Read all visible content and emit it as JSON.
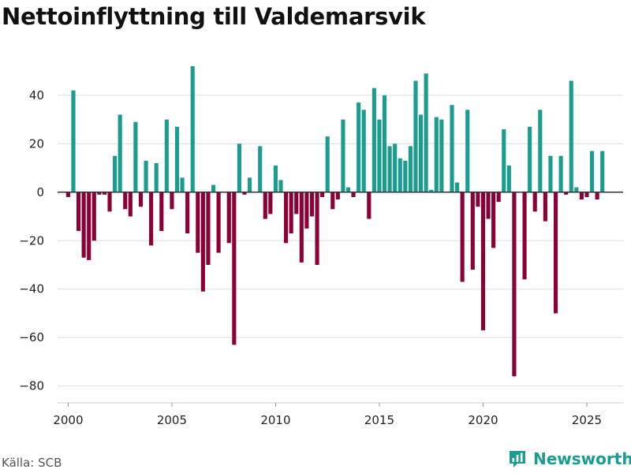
{
  "title": "Nettoinflyttning till Valdemarsvik",
  "source": "Källa: SCB",
  "brand": {
    "name": "Newsworthy",
    "color": "#1a9c8e"
  },
  "colors": {
    "positive": "#1a9c8e",
    "negative": "#8b0036",
    "grid": "#dddddd",
    "zero": "#333333"
  },
  "chart_data": {
    "type": "bar",
    "title": "Nettoinflyttning till Valdemarsvik",
    "xlabel": "",
    "ylabel": "",
    "frequency": "quarterly",
    "first_period": 2000.0,
    "xlim": [
      1999.3,
      2026.75
    ],
    "ylim": [
      -85,
      52
    ],
    "x_ticks": [
      2000,
      2005,
      2010,
      2015,
      2020,
      2025
    ],
    "y_ticks": [
      -80,
      -60,
      -40,
      -20,
      0,
      20,
      40
    ],
    "y_tick_labels": [
      "−80",
      "−60",
      "−40",
      "−20",
      "0",
      "20",
      "40"
    ],
    "values": [
      -2,
      42,
      -16,
      -27,
      -28,
      -20,
      -1,
      -1,
      -8,
      15,
      32,
      -7,
      -10,
      29,
      -6,
      13,
      -22,
      12,
      -16,
      30,
      -7,
      27,
      6,
      -17,
      52,
      -25,
      -41,
      -30,
      3,
      -25,
      0,
      -21,
      -63,
      20,
      -1,
      6,
      0,
      19,
      -11,
      -9,
      11,
      5,
      -21,
      -17,
      -9,
      -29,
      -15,
      -10,
      -30,
      -2,
      23,
      -7,
      -3,
      30,
      2,
      -2,
      37,
      34,
      -11,
      43,
      30,
      40,
      19,
      20,
      14,
      13,
      19,
      46,
      32,
      49,
      1,
      31,
      30,
      0,
      36,
      4,
      -37,
      34,
      -32,
      -6,
      -57,
      -11,
      -23,
      -4,
      26,
      11,
      -76,
      0,
      -36,
      27,
      -8,
      34,
      -12,
      15,
      -50,
      15,
      -1,
      46,
      2,
      -3,
      -2,
      17,
      -3,
      17
    ]
  }
}
